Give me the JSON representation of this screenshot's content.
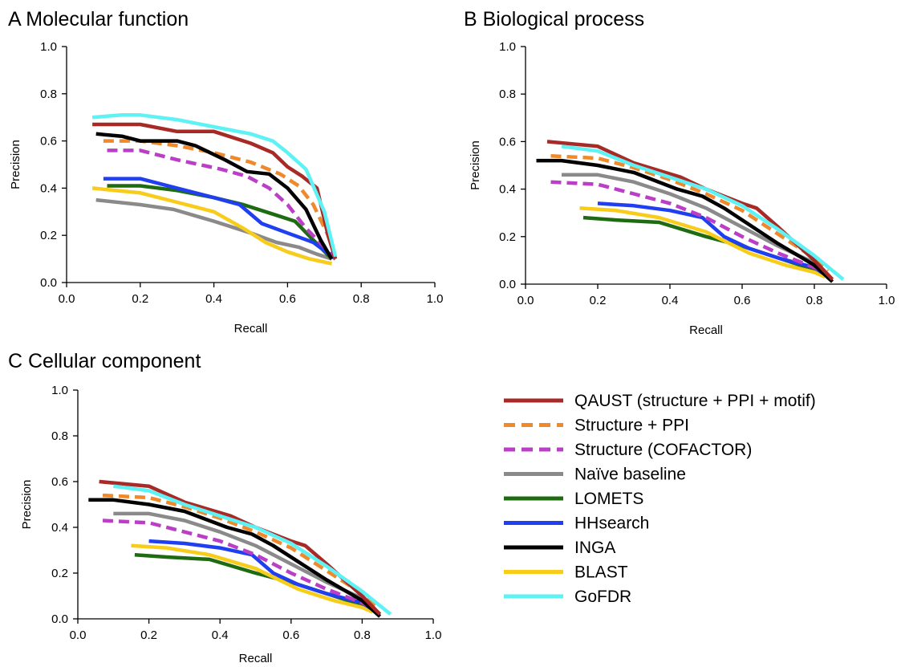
{
  "legend": [
    {
      "key": "qaust",
      "name": "QAUST (structure + PPI + motif)",
      "color": "#a82a27",
      "dashed": false
    },
    {
      "key": "spp",
      "name": "Structure + PPI",
      "color": "#f0892c",
      "dashed": true
    },
    {
      "key": "cof",
      "name": "Structure (COFACTOR)",
      "color": "#bb3fc6",
      "dashed": true
    },
    {
      "key": "naive",
      "name": "Naïve baseline",
      "color": "#8a8a8a",
      "dashed": false
    },
    {
      "key": "lomets",
      "name": "LOMETS",
      "color": "#1e6b12",
      "dashed": false
    },
    {
      "key": "hhsearch",
      "name": "HHsearch",
      "color": "#1f3ff0",
      "dashed": false
    },
    {
      "key": "inga",
      "name": "INGA",
      "color": "#000000",
      "dashed": false
    },
    {
      "key": "blast",
      "name": "BLAST",
      "color": "#f8cc1b",
      "dashed": false
    },
    {
      "key": "gofdr",
      "name": "GoFDR",
      "color": "#5ff2f5",
      "dashed": false
    }
  ],
  "chart_data": [
    {
      "type": "line",
      "title": "A  Molecular function",
      "xlabel": "Recall",
      "ylabel": "Precision",
      "xlim": [
        0,
        1
      ],
      "ylim": [
        0,
        1
      ],
      "xticks": [
        "0.0",
        "0.2",
        "0.4",
        "0.6",
        "0.8",
        "1.0"
      ],
      "yticks": [
        "0.0",
        "0.2",
        "0.4",
        "0.6",
        "0.8",
        "1.0"
      ],
      "series": [
        {
          "key": "naive",
          "x": [
            0.08,
            0.2,
            0.29,
            0.4,
            0.5,
            0.57,
            0.63,
            0.68,
            0.72
          ],
          "y": [
            0.35,
            0.33,
            0.31,
            0.26,
            0.21,
            0.17,
            0.15,
            0.12,
            0.1
          ]
        },
        {
          "key": "lomets",
          "x": [
            0.11,
            0.2,
            0.3,
            0.4,
            0.48,
            0.56,
            0.62,
            0.67,
            0.72
          ],
          "y": [
            0.41,
            0.41,
            0.39,
            0.36,
            0.33,
            0.29,
            0.26,
            0.18,
            0.1
          ]
        },
        {
          "key": "blast",
          "x": [
            0.07,
            0.2,
            0.3,
            0.4,
            0.48,
            0.54,
            0.6,
            0.66,
            0.72
          ],
          "y": [
            0.4,
            0.38,
            0.34,
            0.3,
            0.23,
            0.17,
            0.13,
            0.1,
            0.08
          ]
        },
        {
          "key": "hhsearch",
          "x": [
            0.1,
            0.2,
            0.3,
            0.4,
            0.47,
            0.53,
            0.6,
            0.67,
            0.73
          ],
          "y": [
            0.44,
            0.44,
            0.4,
            0.36,
            0.33,
            0.25,
            0.21,
            0.17,
            0.1
          ]
        },
        {
          "key": "cof",
          "x": [
            0.11,
            0.2,
            0.3,
            0.42,
            0.49,
            0.55,
            0.6,
            0.65,
            0.7,
            0.73
          ],
          "y": [
            0.56,
            0.56,
            0.52,
            0.48,
            0.45,
            0.4,
            0.33,
            0.23,
            0.15,
            0.1
          ]
        },
        {
          "key": "spp",
          "x": [
            0.1,
            0.2,
            0.3,
            0.4,
            0.5,
            0.58,
            0.63,
            0.67,
            0.71,
            0.73
          ],
          "y": [
            0.6,
            0.6,
            0.58,
            0.55,
            0.51,
            0.46,
            0.41,
            0.33,
            0.2,
            0.11
          ]
        },
        {
          "key": "inga",
          "x": [
            0.08,
            0.15,
            0.2,
            0.3,
            0.35,
            0.43,
            0.49,
            0.55,
            0.6,
            0.65,
            0.69,
            0.72
          ],
          "y": [
            0.63,
            0.62,
            0.6,
            0.6,
            0.58,
            0.52,
            0.47,
            0.46,
            0.4,
            0.31,
            0.18,
            0.1
          ]
        },
        {
          "key": "qaust",
          "x": [
            0.07,
            0.2,
            0.3,
            0.4,
            0.5,
            0.56,
            0.6,
            0.64,
            0.68,
            0.71,
            0.73
          ],
          "y": [
            0.67,
            0.67,
            0.64,
            0.64,
            0.59,
            0.55,
            0.49,
            0.45,
            0.4,
            0.2,
            0.1
          ]
        },
        {
          "key": "gofdr",
          "x": [
            0.07,
            0.15,
            0.2,
            0.3,
            0.4,
            0.5,
            0.56,
            0.6,
            0.65,
            0.7,
            0.73
          ],
          "y": [
            0.7,
            0.71,
            0.71,
            0.69,
            0.66,
            0.63,
            0.6,
            0.55,
            0.48,
            0.3,
            0.11
          ]
        }
      ]
    },
    {
      "type": "line",
      "title": "B  Biological process",
      "xlabel": "Recall",
      "ylabel": "Precision",
      "xlim": [
        0,
        1
      ],
      "ylim": [
        0,
        1
      ],
      "xticks": [
        "0.0",
        "0.2",
        "0.4",
        "0.6",
        "0.8",
        "1.0"
      ],
      "yticks": [
        "0.0",
        "0.2",
        "0.4",
        "0.6",
        "0.8",
        "1.0"
      ],
      "series": [
        {
          "key": "lomets",
          "x": [
            0.16,
            0.25,
            0.37,
            0.5,
            0.6,
            0.7,
            0.8,
            0.83
          ],
          "y": [
            0.28,
            0.27,
            0.26,
            0.2,
            0.16,
            0.11,
            0.06,
            0.04
          ]
        },
        {
          "key": "blast",
          "x": [
            0.15,
            0.25,
            0.37,
            0.5,
            0.62,
            0.72,
            0.8,
            0.83
          ],
          "y": [
            0.32,
            0.31,
            0.28,
            0.22,
            0.13,
            0.08,
            0.05,
            0.03
          ]
        },
        {
          "key": "hhsearch",
          "x": [
            0.2,
            0.3,
            0.4,
            0.49,
            0.55,
            0.62,
            0.7,
            0.8,
            0.83
          ],
          "y": [
            0.34,
            0.33,
            0.31,
            0.28,
            0.2,
            0.15,
            0.11,
            0.07,
            0.04
          ]
        },
        {
          "key": "cof",
          "x": [
            0.07,
            0.2,
            0.3,
            0.4,
            0.5,
            0.6,
            0.7,
            0.8,
            0.83
          ],
          "y": [
            0.43,
            0.42,
            0.38,
            0.34,
            0.28,
            0.2,
            0.13,
            0.07,
            0.05
          ]
        },
        {
          "key": "naive",
          "x": [
            0.1,
            0.2,
            0.3,
            0.4,
            0.5,
            0.6,
            0.7,
            0.8,
            0.83
          ],
          "y": [
            0.46,
            0.46,
            0.43,
            0.38,
            0.32,
            0.24,
            0.16,
            0.09,
            0.05
          ]
        },
        {
          "key": "inga",
          "x": [
            0.03,
            0.1,
            0.2,
            0.3,
            0.42,
            0.49,
            0.55,
            0.62,
            0.7,
            0.8,
            0.85
          ],
          "y": [
            0.52,
            0.52,
            0.5,
            0.47,
            0.4,
            0.37,
            0.32,
            0.25,
            0.17,
            0.08,
            0.01
          ]
        },
        {
          "key": "spp",
          "x": [
            0.07,
            0.2,
            0.3,
            0.4,
            0.5,
            0.6,
            0.7,
            0.8,
            0.84
          ],
          "y": [
            0.54,
            0.53,
            0.49,
            0.44,
            0.38,
            0.31,
            0.21,
            0.11,
            0.06
          ]
        },
        {
          "key": "qaust",
          "x": [
            0.06,
            0.2,
            0.3,
            0.43,
            0.5,
            0.6,
            0.64,
            0.7,
            0.8,
            0.85
          ],
          "y": [
            0.6,
            0.58,
            0.51,
            0.45,
            0.4,
            0.34,
            0.32,
            0.24,
            0.1,
            0.02
          ]
        },
        {
          "key": "gofdr",
          "x": [
            0.1,
            0.2,
            0.3,
            0.4,
            0.5,
            0.6,
            0.7,
            0.8,
            0.88
          ],
          "y": [
            0.58,
            0.56,
            0.5,
            0.45,
            0.4,
            0.33,
            0.23,
            0.12,
            0.02
          ]
        }
      ]
    },
    {
      "type": "line",
      "title": "C  Cellular component",
      "xlabel": "Recall",
      "ylabel": "Precision",
      "xlim": [
        0,
        1
      ],
      "ylim": [
        0,
        1
      ],
      "xticks": [
        "0.0",
        "0.2",
        "0.4",
        "0.6",
        "0.8",
        "1.0"
      ],
      "yticks": [
        "0.0",
        "0.2",
        "0.4",
        "0.6",
        "0.8",
        "1.0"
      ],
      "series": [
        {
          "key": "lomets",
          "x": [
            0.16,
            0.25,
            0.37,
            0.5,
            0.6,
            0.7,
            0.8,
            0.83
          ],
          "y": [
            0.28,
            0.27,
            0.26,
            0.2,
            0.16,
            0.11,
            0.06,
            0.04
          ]
        },
        {
          "key": "blast",
          "x": [
            0.15,
            0.25,
            0.37,
            0.5,
            0.62,
            0.72,
            0.8,
            0.83
          ],
          "y": [
            0.32,
            0.31,
            0.28,
            0.22,
            0.13,
            0.08,
            0.05,
            0.03
          ]
        },
        {
          "key": "hhsearch",
          "x": [
            0.2,
            0.3,
            0.4,
            0.49,
            0.55,
            0.62,
            0.7,
            0.8,
            0.83
          ],
          "y": [
            0.34,
            0.33,
            0.31,
            0.28,
            0.2,
            0.15,
            0.11,
            0.07,
            0.04
          ]
        },
        {
          "key": "cof",
          "x": [
            0.07,
            0.2,
            0.3,
            0.4,
            0.5,
            0.6,
            0.7,
            0.8,
            0.83
          ],
          "y": [
            0.43,
            0.42,
            0.38,
            0.34,
            0.28,
            0.2,
            0.13,
            0.07,
            0.05
          ]
        },
        {
          "key": "naive",
          "x": [
            0.1,
            0.2,
            0.3,
            0.4,
            0.5,
            0.6,
            0.7,
            0.8,
            0.83
          ],
          "y": [
            0.46,
            0.46,
            0.43,
            0.38,
            0.32,
            0.24,
            0.16,
            0.09,
            0.05
          ]
        },
        {
          "key": "inga",
          "x": [
            0.03,
            0.1,
            0.2,
            0.3,
            0.42,
            0.49,
            0.55,
            0.62,
            0.7,
            0.8,
            0.85
          ],
          "y": [
            0.52,
            0.52,
            0.5,
            0.47,
            0.4,
            0.37,
            0.32,
            0.25,
            0.17,
            0.08,
            0.01
          ]
        },
        {
          "key": "spp",
          "x": [
            0.07,
            0.2,
            0.3,
            0.4,
            0.5,
            0.6,
            0.7,
            0.8,
            0.84
          ],
          "y": [
            0.54,
            0.53,
            0.49,
            0.44,
            0.38,
            0.31,
            0.21,
            0.11,
            0.06
          ]
        },
        {
          "key": "qaust",
          "x": [
            0.06,
            0.2,
            0.3,
            0.43,
            0.5,
            0.6,
            0.64,
            0.7,
            0.8,
            0.85
          ],
          "y": [
            0.6,
            0.58,
            0.51,
            0.45,
            0.4,
            0.34,
            0.32,
            0.24,
            0.1,
            0.02
          ]
        },
        {
          "key": "gofdr",
          "x": [
            0.1,
            0.2,
            0.3,
            0.4,
            0.5,
            0.6,
            0.7,
            0.8,
            0.88
          ],
          "y": [
            0.58,
            0.56,
            0.5,
            0.45,
            0.4,
            0.33,
            0.23,
            0.12,
            0.02
          ]
        }
      ]
    }
  ]
}
